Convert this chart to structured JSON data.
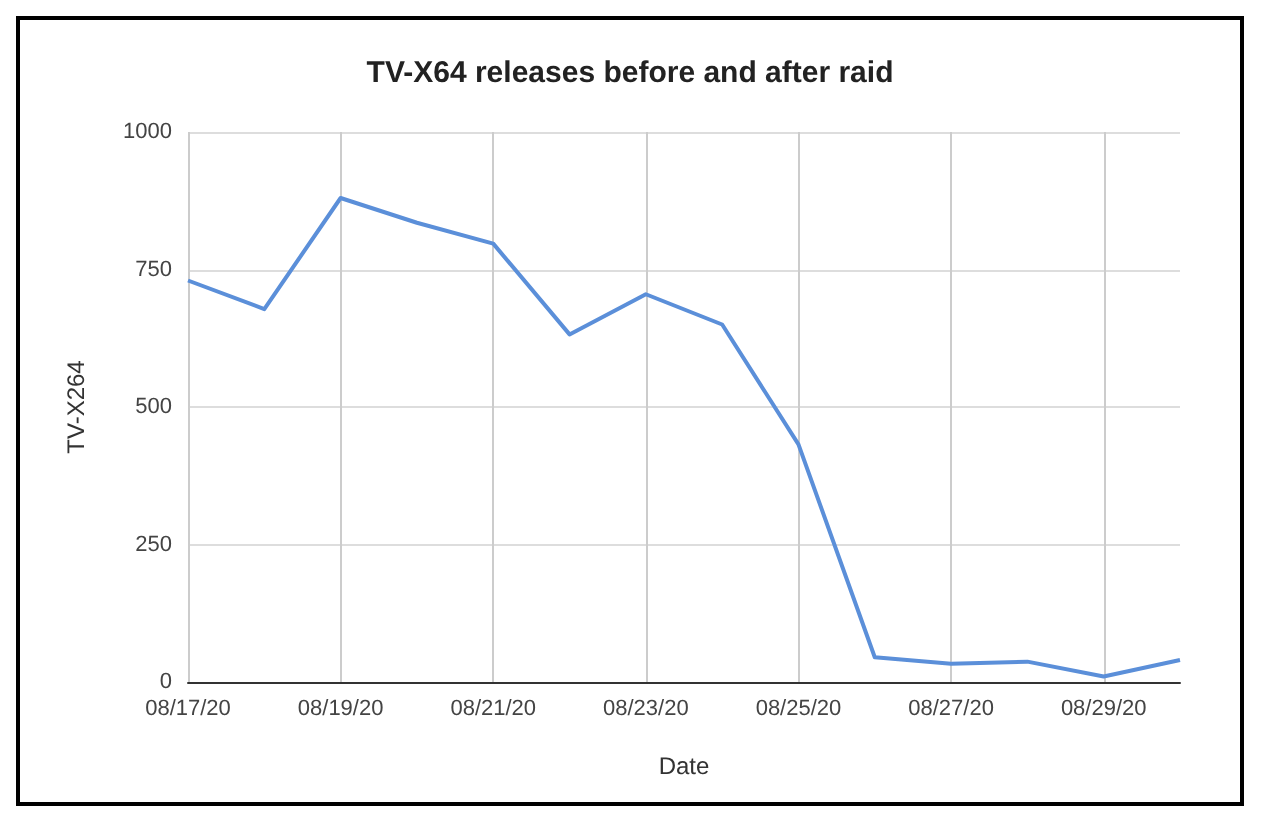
{
  "chart_data": {
    "type": "line",
    "title": "TV-X64 releases before and after raid",
    "xlabel": "Date",
    "ylabel": "TV-X264",
    "categories": [
      "08/17/20",
      null,
      "08/19/20",
      null,
      "08/21/20",
      null,
      "08/23/20",
      null,
      "08/25/20",
      null,
      "08/27/20",
      null,
      "08/29/20",
      null
    ],
    "series": [
      {
        "color": "#5b8fd9",
        "values": [
          730,
          678,
          880,
          835,
          797,
          632,
          705,
          650,
          432,
          45,
          33,
          37,
          10,
          40
        ]
      }
    ],
    "ylim": [
      0,
      1000
    ],
    "yticks": [
      0,
      250,
      500,
      750,
      1000
    ],
    "grid": true,
    "marker": "none",
    "line_style": "solid"
  }
}
